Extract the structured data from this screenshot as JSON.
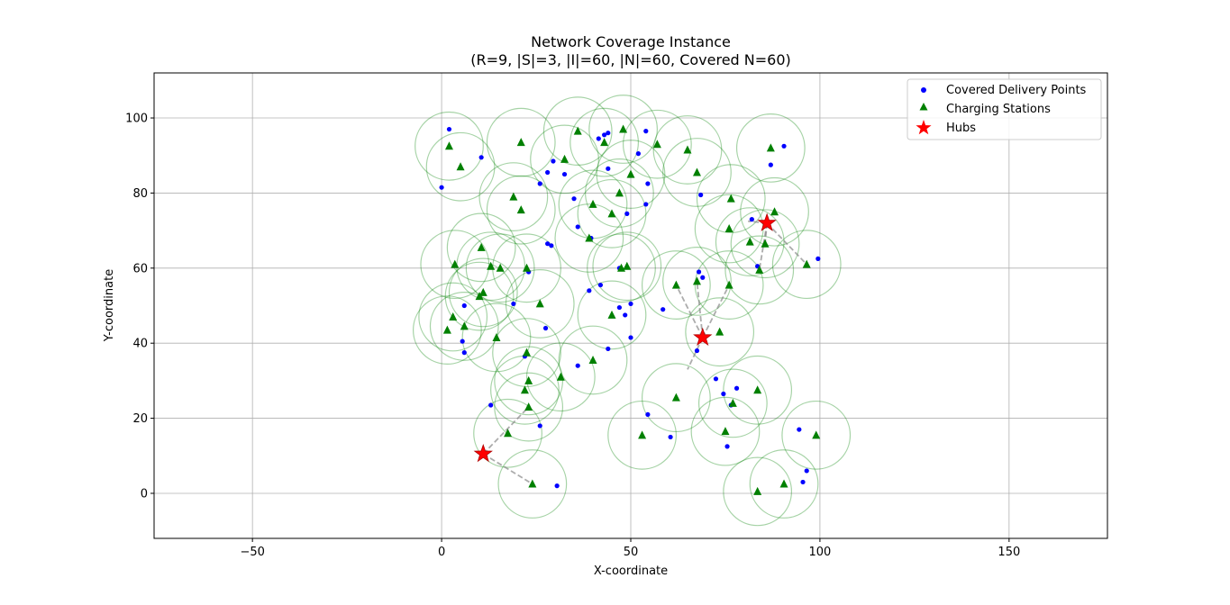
{
  "chart_data": {
    "type": "scatter",
    "title": "Network Coverage Instance",
    "subtitle": "(R=9, |S|=3, |I|=60, |N|=60, Covered N=60)",
    "xlabel": "X-coordinate",
    "ylabel": "Y-coordinate",
    "xlim": [
      -76,
      176
    ],
    "ylim": [
      -12,
      112
    ],
    "xticks": [
      -50,
      0,
      50,
      100,
      150
    ],
    "yticks": [
      0,
      20,
      40,
      60,
      80,
      100
    ],
    "grid": true,
    "legend_position": "top-right",
    "coverage_radius": 9,
    "colors": {
      "points": "#0000ff",
      "stations": "#008000",
      "hubs": "#ff0000",
      "coverage": "#008000",
      "links": "#808080"
    },
    "legend": [
      {
        "label": "Covered Delivery Points",
        "marker": "circle",
        "color": "#0000ff"
      },
      {
        "label": "Charging Stations",
        "marker": "triangle",
        "color": "#008000"
      },
      {
        "label": "Hubs",
        "marker": "star",
        "color": "#ff0000"
      }
    ],
    "hubs": [
      [
        11,
        10.5
      ],
      [
        69,
        41.5
      ],
      [
        86,
        72
      ]
    ],
    "stations": [
      [
        2,
        92.5
      ],
      [
        5,
        87
      ],
      [
        19,
        79
      ],
      [
        21,
        75.5
      ],
      [
        21,
        93.5
      ],
      [
        32.5,
        89
      ],
      [
        36,
        96.5
      ],
      [
        43,
        93.5
      ],
      [
        48,
        97
      ],
      [
        50,
        85
      ],
      [
        57,
        93
      ],
      [
        40,
        77
      ],
      [
        45,
        74.5
      ],
      [
        47,
        80
      ],
      [
        39,
        68
      ],
      [
        10.5,
        65.5
      ],
      [
        3.5,
        61
      ],
      [
        13,
        60.5
      ],
      [
        15.5,
        60
      ],
      [
        22.5,
        60
      ],
      [
        47.5,
        60
      ],
      [
        49,
        60.5
      ],
      [
        65,
        91.5
      ],
      [
        67.5,
        85.5
      ],
      [
        76.5,
        78.5
      ],
      [
        88,
        75
      ],
      [
        76,
        70.5
      ],
      [
        81.5,
        67
      ],
      [
        85.5,
        66.5
      ],
      [
        84,
        59.5
      ],
      [
        87,
        92
      ],
      [
        96.5,
        61
      ],
      [
        10,
        52.5
      ],
      [
        11,
        53.5
      ],
      [
        26,
        50.5
      ],
      [
        3,
        47
      ],
      [
        6,
        44.5
      ],
      [
        1.5,
        43.5
      ],
      [
        14.5,
        41.5
      ],
      [
        45,
        47.5
      ],
      [
        62,
        55.5
      ],
      [
        67.5,
        56.5
      ],
      [
        76,
        55.5
      ],
      [
        73.5,
        43
      ],
      [
        22.5,
        37.5
      ],
      [
        40,
        35.5
      ],
      [
        31.5,
        31
      ],
      [
        23,
        30
      ],
      [
        22,
        27.5
      ],
      [
        23,
        23
      ],
      [
        17.5,
        16
      ],
      [
        24,
        2.5
      ],
      [
        53,
        15.5
      ],
      [
        62,
        25.5
      ],
      [
        75,
        16.5
      ],
      [
        77,
        24
      ],
      [
        83.5,
        27.5
      ],
      [
        83.5,
        0.5
      ],
      [
        90.5,
        2.5
      ],
      [
        99,
        15.5
      ]
    ],
    "points": [
      [
        2,
        97
      ],
      [
        10.5,
        89.5
      ],
      [
        0,
        81.5
      ],
      [
        26,
        82.5
      ],
      [
        28,
        85.5
      ],
      [
        29.5,
        88.5
      ],
      [
        32.5,
        85
      ],
      [
        35,
        78.5
      ],
      [
        41.5,
        94.5
      ],
      [
        43,
        95.5
      ],
      [
        44,
        96
      ],
      [
        52,
        90.5
      ],
      [
        54,
        96.5
      ],
      [
        44,
        86.5
      ],
      [
        54.5,
        82.5
      ],
      [
        54,
        77
      ],
      [
        49,
        74.5
      ],
      [
        36,
        71
      ],
      [
        39.5,
        68
      ],
      [
        28,
        66.5
      ],
      [
        29,
        66
      ],
      [
        23,
        59
      ],
      [
        47,
        60
      ],
      [
        68.5,
        79.5
      ],
      [
        82,
        73
      ],
      [
        87,
        87.5
      ],
      [
        90.5,
        92.5
      ],
      [
        83.5,
        60.5
      ],
      [
        99.5,
        62.5
      ],
      [
        68,
        59
      ],
      [
        69,
        57.5
      ],
      [
        42,
        55.5
      ],
      [
        39,
        54
      ],
      [
        19,
        50.5
      ],
      [
        6,
        50
      ],
      [
        47,
        49.5
      ],
      [
        48.5,
        47.5
      ],
      [
        50,
        50.5
      ],
      [
        58.5,
        49
      ],
      [
        27.5,
        44
      ],
      [
        5.5,
        40.5
      ],
      [
        6,
        37.5
      ],
      [
        22,
        36.5
      ],
      [
        36,
        34
      ],
      [
        44,
        38.5
      ],
      [
        50,
        41.5
      ],
      [
        67.5,
        38
      ],
      [
        72.5,
        30.5
      ],
      [
        74.5,
        26.5
      ],
      [
        76.5,
        23.5
      ],
      [
        78,
        28
      ],
      [
        13,
        23.5
      ],
      [
        26,
        18
      ],
      [
        54.5,
        21
      ],
      [
        60.5,
        15
      ],
      [
        75.5,
        12.5
      ],
      [
        94.5,
        17
      ],
      [
        96.5,
        6
      ],
      [
        95.5,
        3
      ],
      [
        30.5,
        2
      ]
    ],
    "links": [
      [
        [
          11,
          10.5
        ],
        [
          23,
          23
        ]
      ],
      [
        [
          11,
          10.5
        ],
        [
          24,
          2.5
        ]
      ],
      [
        [
          69,
          41.5
        ],
        [
          62,
          55.5
        ]
      ],
      [
        [
          69,
          41.5
        ],
        [
          67.5,
          56.5
        ]
      ],
      [
        [
          69,
          41.5
        ],
        [
          76,
          55.5
        ]
      ],
      [
        [
          69,
          41.5
        ],
        [
          65,
          33
        ]
      ],
      [
        [
          86,
          72
        ],
        [
          85.5,
          66.5
        ]
      ],
      [
        [
          86,
          72
        ],
        [
          84,
          59.5
        ]
      ],
      [
        [
          86,
          72
        ],
        [
          81,
          72.5
        ]
      ],
      [
        [
          86,
          72
        ],
        [
          96.5,
          61
        ]
      ]
    ]
  }
}
